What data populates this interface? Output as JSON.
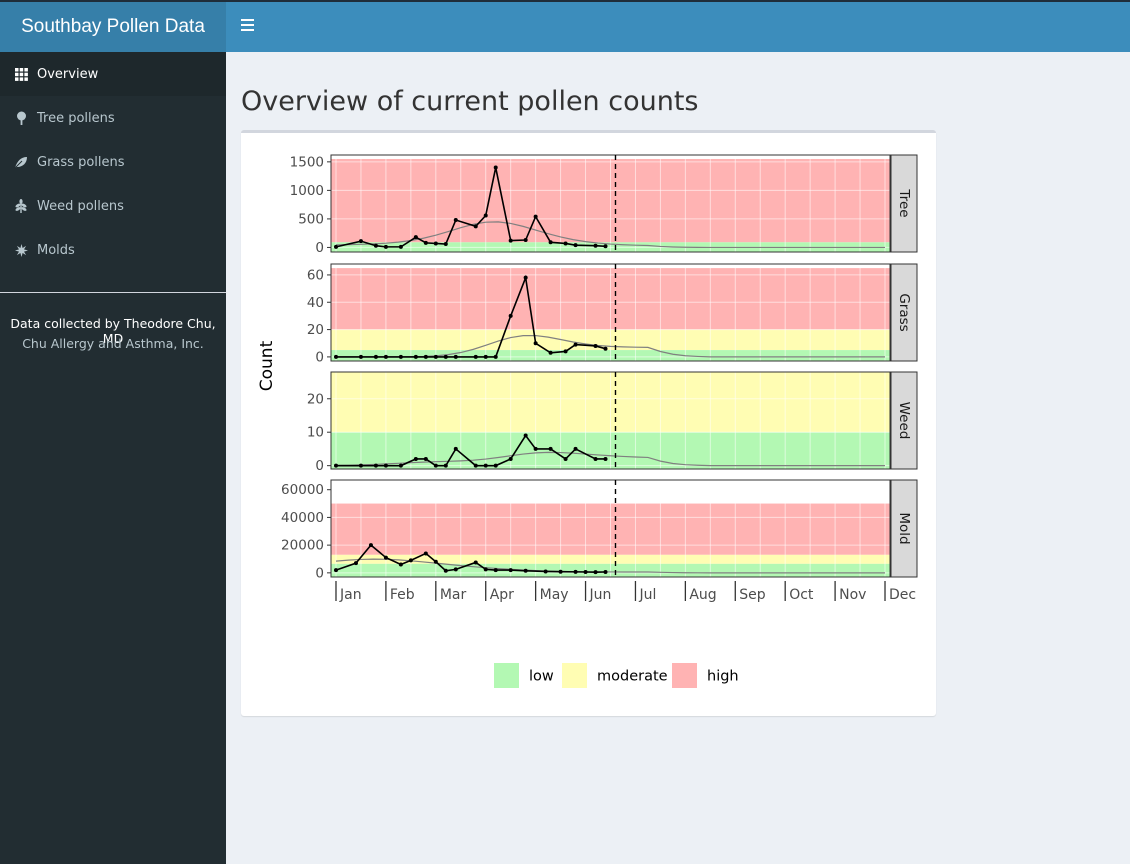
{
  "app": {
    "title": "Southbay Pollen Data",
    "toggle_icon": "hamburger-icon"
  },
  "sidebar": {
    "items": [
      {
        "label": "Overview",
        "icon": "grid-icon",
        "active": true
      },
      {
        "label": "Tree pollens",
        "icon": "tree-icon",
        "active": false
      },
      {
        "label": "Grass pollens",
        "icon": "leaf-icon",
        "active": false
      },
      {
        "label": "Weed pollens",
        "icon": "pagelines-icon",
        "active": false
      },
      {
        "label": "Molds",
        "icon": "burst-icon",
        "active": false
      }
    ],
    "credit_line1": "Data collected by Theodore Chu, MD",
    "credit_line2": "Chu Allergy and Asthma, Inc."
  },
  "main": {
    "title": "Overview of current pollen counts"
  },
  "colors": {
    "low": "#b3f8b3",
    "moderate": "#fffdb3",
    "high": "#ffb3b3",
    "line": "#000000",
    "smooth": "#808080",
    "violin": "#bdbdbd"
  },
  "chart_data": {
    "type": "line",
    "ylabel": "Count",
    "months": [
      "Jan",
      "Feb",
      "Mar",
      "Apr",
      "May",
      "Jun",
      "Jul",
      "Aug",
      "Sep",
      "Oct",
      "Nov",
      "Dec"
    ],
    "current_date_month": 6.6,
    "legend": [
      {
        "key": "low",
        "label": "low"
      },
      {
        "key": "moderate",
        "label": "moderate"
      },
      {
        "key": "high",
        "label": "high"
      }
    ],
    "legend_position": "bottom",
    "panels": [
      {
        "name": "Tree",
        "ylim": [
          -80,
          1620
        ],
        "ticks": [
          0,
          500,
          1000,
          1500
        ],
        "bands": {
          "low": [
            0,
            90
          ],
          "moderate": [
            90,
            1500
          ],
          "high": [
            90,
            1550
          ]
        },
        "x": [
          1.0,
          1.5,
          1.8,
          2.0,
          2.3,
          2.6,
          2.8,
          3.0,
          3.2,
          3.4,
          3.8,
          4.0,
          4.2,
          4.5,
          4.8,
          5.0,
          5.3,
          5.6,
          5.8,
          6.2,
          6.4
        ],
        "y": [
          10,
          110,
          30,
          10,
          10,
          180,
          80,
          70,
          60,
          480,
          370,
          560,
          1400,
          120,
          130,
          540,
          90,
          70,
          40,
          30,
          20
        ]
      },
      {
        "name": "Grass",
        "ylim": [
          -3,
          68
        ],
        "ticks": [
          0,
          20,
          40,
          60
        ],
        "bands": {
          "low": [
            0,
            5
          ],
          "moderate": [
            5,
            20
          ],
          "high": [
            20,
            65
          ]
        },
        "x": [
          1.0,
          1.5,
          1.8,
          2.0,
          2.3,
          2.6,
          2.8,
          3.0,
          3.2,
          3.4,
          3.8,
          4.0,
          4.2,
          4.5,
          4.8,
          5.0,
          5.3,
          5.6,
          5.8,
          6.2,
          6.4
        ],
        "y": [
          0,
          0,
          0,
          0,
          0,
          0,
          0,
          0,
          0,
          0,
          0,
          0,
          0,
          30,
          58,
          10,
          3,
          4,
          9,
          8,
          6
        ]
      },
      {
        "name": "Weed",
        "ylim": [
          -1,
          28
        ],
        "ticks": [
          0,
          10,
          20
        ],
        "bands": {
          "low": [
            0,
            10
          ],
          "moderate": [
            10,
            28
          ],
          "high": [
            28,
            28
          ]
        },
        "x": [
          1.0,
          1.5,
          1.8,
          2.0,
          2.3,
          2.6,
          2.8,
          3.0,
          3.2,
          3.4,
          3.8,
          4.0,
          4.2,
          4.5,
          4.8,
          5.0,
          5.3,
          5.6,
          5.8,
          6.2,
          6.4
        ],
        "y": [
          0,
          0,
          0,
          0,
          0,
          2,
          2,
          0,
          0,
          5,
          0,
          0,
          0,
          2,
          9,
          5,
          5,
          2,
          5,
          2,
          2
        ]
      },
      {
        "name": "Mold",
        "ylim": [
          -3000,
          67000
        ],
        "ticks": [
          0,
          20000,
          40000,
          60000
        ],
        "bands": {
          "low": [
            0,
            6500
          ],
          "moderate": [
            6500,
            13000
          ],
          "high": [
            13000,
            50000
          ]
        },
        "x": [
          1.0,
          1.4,
          1.7,
          2.0,
          2.3,
          2.5,
          2.8,
          3.0,
          3.2,
          3.4,
          3.8,
          4.0,
          4.2,
          4.5,
          4.8,
          5.2,
          5.5,
          5.8,
          6.0,
          6.2,
          6.4
        ],
        "y": [
          2000,
          7000,
          20000,
          11000,
          6000,
          9000,
          14000,
          8000,
          1500,
          2500,
          7500,
          2500,
          2000,
          2000,
          1500,
          1000,
          800,
          700,
          600,
          500,
          600
        ]
      }
    ]
  }
}
